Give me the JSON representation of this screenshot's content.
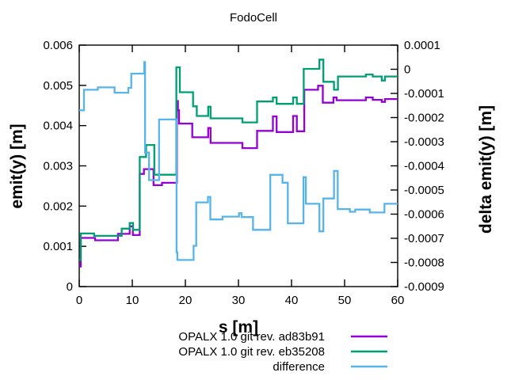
{
  "title": "FodoCell",
  "chart_data": {
    "type": "line",
    "step_mode": "after",
    "title": "FodoCell",
    "xlabel": "s [m]",
    "ylabel_left": "emit(y) [m]",
    "ylabel_right": "delta emit(y) [m]",
    "x_range": [
      0,
      60
    ],
    "y_left_range": [
      0,
      0.006
    ],
    "y_right_range": [
      -0.0009,
      0.0001
    ],
    "grid": false,
    "legend_position": "below-center",
    "x_ticks": [
      0,
      10,
      20,
      30,
      40,
      50,
      60
    ],
    "x_tick_labels": [
      "0",
      "10",
      "20",
      "30",
      "40",
      "50",
      "60"
    ],
    "y_left_ticks": [
      0,
      0.001,
      0.002,
      0.003,
      0.004,
      0.005,
      0.006
    ],
    "y_left_tick_labels": [
      "0",
      "0.001",
      "0.002",
      "0.003",
      "0.004",
      "0.005",
      "0.006"
    ],
    "y_right_ticks": [
      0.0001,
      0,
      -0.0001,
      -0.0002,
      -0.0003,
      -0.0004,
      -0.0005,
      -0.0006,
      -0.0007,
      -0.0008,
      -0.0009
    ],
    "y_right_tick_labels": [
      "0.0001",
      "0",
      "-0.0001",
      "-0.0002",
      "-0.0003",
      "-0.0004",
      "-0.0005",
      "-0.0006",
      "-0.0007",
      "-0.0008",
      "-0.0009"
    ],
    "series": [
      {
        "name": "OPALX 1.0 git rev. ad83b91",
        "axis": "left",
        "color": "#9400d3",
        "points": [
          [
            0,
            0.0005
          ],
          [
            0.3,
            0.00121
          ],
          [
            3,
            0.00115
          ],
          [
            7.3,
            0.00131
          ],
          [
            9.5,
            0.0015
          ],
          [
            10.1,
            0.00128
          ],
          [
            11.4,
            0.0028
          ],
          [
            12.2,
            0.00292
          ],
          [
            14,
            0.00252
          ],
          [
            15.6,
            0.00258
          ],
          [
            18.4,
            0.00461
          ],
          [
            18.6,
            0.00438
          ],
          [
            18.8,
            0.00405
          ],
          [
            21.3,
            0.00371
          ],
          [
            24.3,
            0.00394
          ],
          [
            24.75,
            0.00357
          ],
          [
            30.75,
            0.00344
          ],
          [
            33.5,
            0.00387
          ],
          [
            36.5,
            0.00423
          ],
          [
            37.2,
            0.00384
          ],
          [
            40.3,
            0.00424
          ],
          [
            41,
            0.00386
          ],
          [
            42.4,
            0.00489
          ],
          [
            45,
            0.00499
          ],
          [
            45.9,
            0.00457
          ],
          [
            47.9,
            0.0047
          ],
          [
            48.5,
            0.00463
          ],
          [
            54,
            0.0047
          ],
          [
            55.3,
            0.00464
          ],
          [
            57,
            0.00459
          ],
          [
            57.6,
            0.00466
          ]
        ]
      },
      {
        "name": "OPALX 1.0 git rev. eb35208",
        "axis": "left",
        "color": "#009e73",
        "points": [
          [
            0,
            0.00066
          ],
          [
            0.3,
            0.00132
          ],
          [
            2.8,
            0.00126
          ],
          [
            8,
            0.00144
          ],
          [
            9.5,
            0.00158
          ],
          [
            10.15,
            0.00141
          ],
          [
            11.4,
            0.00322
          ],
          [
            12.6,
            0.00352
          ],
          [
            14.15,
            0.00278
          ],
          [
            18.3,
            0.00545
          ],
          [
            18.95,
            0.00483
          ],
          [
            21.45,
            0.00448
          ],
          [
            22.15,
            0.00424
          ],
          [
            24.3,
            0.00447
          ],
          [
            24.75,
            0.00418
          ],
          [
            30.75,
            0.00408
          ],
          [
            33.5,
            0.0046
          ],
          [
            36.5,
            0.0047
          ],
          [
            37.2,
            0.00454
          ],
          [
            40.3,
            0.0047
          ],
          [
            41,
            0.00454
          ],
          [
            42.3,
            0.00541
          ],
          [
            45.25,
            0.00564
          ],
          [
            46,
            0.00509
          ],
          [
            48,
            0.00489
          ],
          [
            48.75,
            0.00522
          ],
          [
            54,
            0.00527
          ],
          [
            55.3,
            0.00522
          ],
          [
            57,
            0.00512
          ],
          [
            57.6,
            0.00522
          ]
        ]
      },
      {
        "name": "difference",
        "axis": "right",
        "color": "#56b4e9",
        "points": [
          [
            0,
            -0.00017
          ],
          [
            0.9,
            -8.5e-05
          ],
          [
            3.5,
            -7.5e-05
          ],
          [
            6.65,
            -9.7e-05
          ],
          [
            9.25,
            -7.7e-05
          ],
          [
            9.8,
            -1.8e-05
          ],
          [
            12.25,
            3e-05
          ],
          [
            12.4,
            -0.000345
          ],
          [
            13.15,
            -0.000459
          ],
          [
            15.05,
            -0.000208
          ],
          [
            18.35,
            -0.000758
          ],
          [
            18.5,
            -0.00079
          ],
          [
            21.55,
            -0.000731
          ],
          [
            22.05,
            -0.000551
          ],
          [
            24.25,
            -0.000529
          ],
          [
            24.7,
            -0.000622
          ],
          [
            27,
            -0.00061
          ],
          [
            30.1,
            -0.000596
          ],
          [
            30.6,
            -0.000612
          ],
          [
            32.75,
            -0.000665
          ],
          [
            36,
            -0.000437
          ],
          [
            38.3,
            -0.00047
          ],
          [
            39.3,
            -0.000638
          ],
          [
            42.25,
            -0.000447
          ],
          [
            42.7,
            -0.000557
          ],
          [
            45.25,
            -0.000671
          ],
          [
            46,
            -0.000535
          ],
          [
            48,
            -0.000421
          ],
          [
            48.7,
            -0.000579
          ],
          [
            51,
            -0.00059
          ],
          [
            52,
            -0.000581
          ],
          [
            54.75,
            -0.000593
          ],
          [
            57.5,
            -0.000557
          ]
        ]
      }
    ],
    "colors": {
      "series_1": "#9400d3",
      "series_2": "#009e73",
      "series_3": "#56b4e9",
      "border": "#000000",
      "background": "#ffffff"
    }
  }
}
